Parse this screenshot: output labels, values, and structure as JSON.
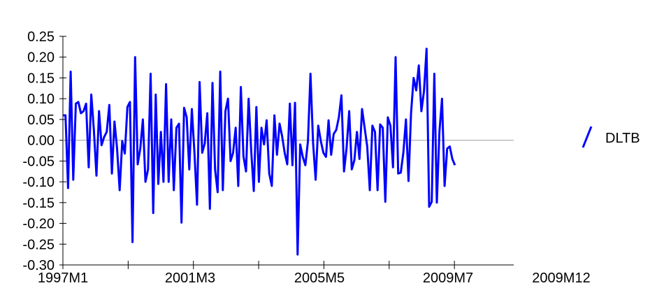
{
  "chart_data": {
    "type": "line",
    "title": "",
    "xlabel": "",
    "ylabel": "",
    "ylim": [
      -0.3,
      0.25
    ],
    "yticks": [
      "0.25",
      "0.20",
      "0.15",
      "0.10",
      "0.05",
      "0.00",
      "-0.05",
      "-0.10",
      "-0.15",
      "-0.20",
      "-0.25",
      "-0.30"
    ],
    "ytick_values": [
      0.25,
      0.2,
      0.15,
      0.1,
      0.05,
      0.0,
      -0.05,
      -0.1,
      -0.15,
      -0.2,
      -0.25,
      -0.3
    ],
    "x_start": "1997M1",
    "x_end": "2009M12",
    "xticks": [
      "1997M1",
      "2001M3",
      "2005M5",
      "2009M7",
      "2009M12"
    ],
    "zero_line": true,
    "legend_position": "right",
    "series": [
      {
        "name": "DLTB",
        "color": "#0000ff",
        "values": [
          0.06,
          0.06,
          -0.115,
          0.165,
          -0.095,
          0.088,
          0.092,
          0.065,
          0.07,
          0.088,
          -0.065,
          0.11,
          0.025,
          -0.085,
          0.07,
          -0.012,
          0.008,
          0.02,
          0.085,
          -0.08,
          0.045,
          -0.02,
          -0.12,
          -0.002,
          -0.032,
          0.08,
          0.092,
          -0.245,
          0.2,
          -0.058,
          -0.02,
          0.05,
          -0.1,
          -0.07,
          0.16,
          -0.175,
          0.11,
          -0.105,
          0.02,
          -0.1,
          0.135,
          -0.1,
          0.05,
          -0.12,
          0.03,
          0.04,
          -0.198,
          0.078,
          0.055,
          -0.07,
          0.075,
          -0.03,
          -0.155,
          0.14,
          -0.03,
          -0.008,
          0.065,
          -0.165,
          0.138,
          -0.07,
          -0.125,
          0.165,
          -0.12,
          0.07,
          0.1,
          -0.05,
          -0.03,
          0.03,
          -0.11,
          0.128,
          -0.038,
          -0.075,
          0.1,
          -0.025,
          -0.122,
          0.08,
          -0.1,
          0.03,
          -0.01,
          0.048,
          -0.08,
          -0.11,
          0.06,
          -0.035,
          0.04,
          0.01,
          -0.03,
          -0.058,
          0.088,
          -0.06,
          0.09,
          -0.275,
          -0.01,
          -0.04,
          -0.06,
          -0.002,
          0.16,
          -0.005,
          -0.095,
          0.035,
          -0.002,
          -0.03,
          -0.04,
          0.048,
          -0.035,
          0.015,
          0.025,
          0.055,
          0.108,
          -0.075,
          -0.018,
          0.07,
          -0.07,
          -0.048,
          0.02,
          -0.045,
          0.075,
          0.03,
          -0.015,
          -0.12,
          0.035,
          0.02,
          -0.12,
          0.038,
          0.03,
          -0.148,
          0.055,
          0.035,
          -0.065,
          0.2,
          -0.08,
          -0.078,
          -0.03,
          0.05,
          -0.098,
          0.065,
          0.15,
          0.12,
          0.18,
          0.07,
          0.118,
          0.22,
          -0.16,
          -0.148,
          0.16,
          -0.15,
          0.02,
          0.1,
          -0.11,
          -0.02,
          -0.015,
          -0.045,
          -0.06
        ]
      }
    ]
  }
}
